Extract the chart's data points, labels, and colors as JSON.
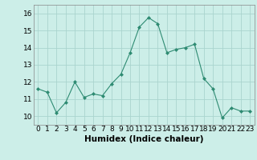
{
  "x": [
    0,
    1,
    2,
    3,
    4,
    5,
    6,
    7,
    8,
    9,
    10,
    11,
    12,
    13,
    14,
    15,
    16,
    17,
    18,
    19,
    20,
    21,
    22,
    23
  ],
  "y": [
    11.6,
    11.4,
    10.2,
    10.8,
    12.0,
    11.1,
    11.3,
    11.2,
    11.9,
    12.45,
    13.7,
    15.2,
    15.75,
    15.4,
    13.7,
    13.9,
    14.0,
    14.2,
    12.2,
    11.6,
    9.9,
    10.5,
    10.3,
    10.3
  ],
  "line_color": "#2e8b72",
  "marker": "D",
  "marker_size": 2,
  "bg_color": "#cceee8",
  "grid_color": "#aad4ce",
  "xlabel": "Humidex (Indice chaleur)",
  "xlim": [
    -0.5,
    23.5
  ],
  "ylim": [
    9.5,
    16.5
  ],
  "yticks": [
    10,
    11,
    12,
    13,
    14,
    15,
    16
  ],
  "xticks": [
    0,
    1,
    2,
    3,
    4,
    5,
    6,
    7,
    8,
    9,
    10,
    11,
    12,
    13,
    14,
    15,
    16,
    17,
    18,
    19,
    20,
    21,
    22,
    23
  ],
  "tick_label_size": 6.5,
  "xlabel_size": 7.5
}
